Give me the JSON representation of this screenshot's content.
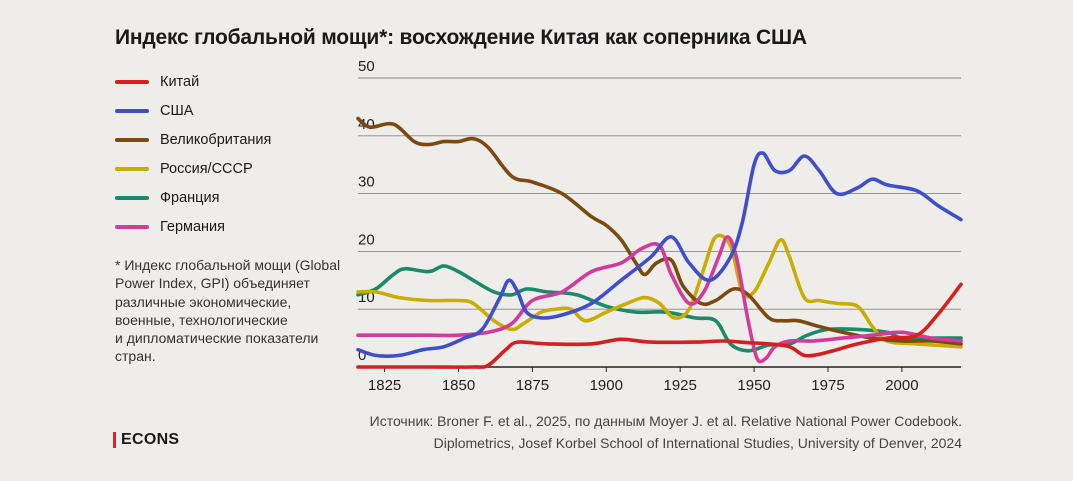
{
  "title": "Индекс глобальной мощи*: восхождение Китая как соперника США",
  "footnote": "* Индекс глобальной мощи (Global Power Index, GPI) объединяет различные экономические, военные, технологические\nи дипломатические показатели стран.",
  "source": {
    "line1": "Источник: Broner F. et al., 2025, по данным Moyer J. et al. Relative National Power Codebook.",
    "line2": "Diplometrics, Josef Korbel School of International Studies, University of Denver, 2024"
  },
  "brand": "ECONS",
  "chart_data": {
    "type": "line",
    "title": "Индекс глобальной мощи*: восхождение Китая как соперника США",
    "xlabel": "",
    "ylabel": "",
    "xlim": [
      1816,
      2020
    ],
    "ylim": [
      0,
      50
    ],
    "x_ticks": [
      "1825",
      "1850",
      "1875",
      "1900",
      "1925",
      "1950",
      "1975",
      "2000"
    ],
    "y_ticks": [
      "0",
      "10",
      "20",
      "30",
      "40",
      "50"
    ],
    "grid": "horizontal",
    "legend_position": "left",
    "series": [
      {
        "name": "Китай",
        "color": "#d42020",
        "points": [
          [
            1816,
            0
          ],
          [
            1825,
            0
          ],
          [
            1840,
            0
          ],
          [
            1855,
            0
          ],
          [
            1860,
            0.3
          ],
          [
            1866,
            3
          ],
          [
            1870,
            4.3
          ],
          [
            1880,
            4
          ],
          [
            1895,
            4
          ],
          [
            1905,
            4.8
          ],
          [
            1915,
            4.3
          ],
          [
            1930,
            4.3
          ],
          [
            1940,
            4.5
          ],
          [
            1948,
            4.2
          ],
          [
            1955,
            4
          ],
          [
            1962,
            3.5
          ],
          [
            1967,
            2
          ],
          [
            1972,
            2.2
          ],
          [
            1978,
            3
          ],
          [
            1985,
            4
          ],
          [
            1995,
            5
          ],
          [
            2005,
            5.5
          ],
          [
            2012,
            9
          ],
          [
            2020,
            14.3
          ]
        ]
      },
      {
        "name": "США",
        "color": "#3f4fc9",
        "points": [
          [
            1816,
            3
          ],
          [
            1822,
            2
          ],
          [
            1830,
            2
          ],
          [
            1838,
            3
          ],
          [
            1845,
            3.5
          ],
          [
            1852,
            5
          ],
          [
            1858,
            6.5
          ],
          [
            1864,
            12
          ],
          [
            1867,
            15
          ],
          [
            1870,
            13
          ],
          [
            1873,
            9.5
          ],
          [
            1878,
            8.5
          ],
          [
            1885,
            9
          ],
          [
            1895,
            11
          ],
          [
            1905,
            15
          ],
          [
            1915,
            19
          ],
          [
            1922,
            22.5
          ],
          [
            1928,
            18
          ],
          [
            1935,
            15
          ],
          [
            1942,
            19
          ],
          [
            1946,
            25
          ],
          [
            1950,
            35
          ],
          [
            1953,
            37
          ],
          [
            1957,
            34
          ],
          [
            1962,
            34
          ],
          [
            1967,
            36.5
          ],
          [
            1972,
            34
          ],
          [
            1978,
            30
          ],
          [
            1985,
            31
          ],
          [
            1990,
            32.5
          ],
          [
            1995,
            31.5
          ],
          [
            2005,
            30.5
          ],
          [
            2012,
            28
          ],
          [
            2020,
            25.5
          ]
        ]
      },
      {
        "name": "Великобритания",
        "color": "#7a4a10",
        "points": [
          [
            1816,
            43
          ],
          [
            1820,
            41.5
          ],
          [
            1828,
            42
          ],
          [
            1835,
            39
          ],
          [
            1840,
            38.5
          ],
          [
            1845,
            39
          ],
          [
            1850,
            39
          ],
          [
            1855,
            39.5
          ],
          [
            1860,
            38
          ],
          [
            1868,
            33
          ],
          [
            1875,
            32
          ],
          [
            1885,
            30
          ],
          [
            1895,
            26
          ],
          [
            1900,
            24.5
          ],
          [
            1905,
            22
          ],
          [
            1910,
            18
          ],
          [
            1913,
            16
          ],
          [
            1917,
            18
          ],
          [
            1922,
            18.5
          ],
          [
            1926,
            14
          ],
          [
            1932,
            11
          ],
          [
            1937,
            11.5
          ],
          [
            1943,
            13.5
          ],
          [
            1948,
            12.5
          ],
          [
            1955,
            8.5
          ],
          [
            1960,
            8
          ],
          [
            1965,
            8
          ],
          [
            1972,
            7
          ],
          [
            1980,
            6
          ],
          [
            1990,
            5
          ],
          [
            2000,
            4.5
          ],
          [
            2010,
            4.5
          ],
          [
            2020,
            4
          ]
        ]
      },
      {
        "name": "Россия/СССР",
        "color": "#c9ad00",
        "points": [
          [
            1816,
            13
          ],
          [
            1822,
            13
          ],
          [
            1830,
            12
          ],
          [
            1840,
            11.5
          ],
          [
            1850,
            11.5
          ],
          [
            1855,
            11
          ],
          [
            1862,
            8
          ],
          [
            1868,
            6.5
          ],
          [
            1872,
            7.5
          ],
          [
            1878,
            9.5
          ],
          [
            1883,
            10
          ],
          [
            1888,
            10
          ],
          [
            1893,
            8
          ],
          [
            1900,
            9.5
          ],
          [
            1907,
            11
          ],
          [
            1913,
            12
          ],
          [
            1918,
            11
          ],
          [
            1923,
            8.5
          ],
          [
            1928,
            10
          ],
          [
            1933,
            17
          ],
          [
            1937,
            22.5
          ],
          [
            1942,
            21
          ],
          [
            1946,
            13
          ],
          [
            1950,
            13
          ],
          [
            1955,
            18
          ],
          [
            1959,
            22
          ],
          [
            1962,
            19
          ],
          [
            1967,
            12
          ],
          [
            1972,
            11.5
          ],
          [
            1978,
            11
          ],
          [
            1985,
            10.5
          ],
          [
            1990,
            7
          ],
          [
            1995,
            4.5
          ],
          [
            2005,
            4
          ],
          [
            2020,
            3.5
          ]
        ]
      },
      {
        "name": "Франция",
        "color": "#1a8a6a",
        "points": [
          [
            1816,
            12.5
          ],
          [
            1822,
            13.5
          ],
          [
            1828,
            16
          ],
          [
            1832,
            17
          ],
          [
            1840,
            16.5
          ],
          [
            1845,
            17.5
          ],
          [
            1850,
            16.5
          ],
          [
            1855,
            15
          ],
          [
            1862,
            13
          ],
          [
            1868,
            12.5
          ],
          [
            1873,
            13.5
          ],
          [
            1880,
            13
          ],
          [
            1890,
            12.5
          ],
          [
            1900,
            10.5
          ],
          [
            1910,
            9.5
          ],
          [
            1920,
            9.5
          ],
          [
            1930,
            8.5
          ],
          [
            1937,
            8
          ],
          [
            1942,
            4
          ],
          [
            1948,
            2.8
          ],
          [
            1955,
            3.8
          ],
          [
            1962,
            4
          ],
          [
            1968,
            5.5
          ],
          [
            1975,
            6.5
          ],
          [
            1985,
            6.5
          ],
          [
            1995,
            6
          ],
          [
            2000,
            5
          ],
          [
            2010,
            5
          ],
          [
            2020,
            5
          ]
        ]
      },
      {
        "name": "Германия",
        "color": "#d43a9c",
        "points": [
          [
            1816,
            5.5
          ],
          [
            1830,
            5.5
          ],
          [
            1840,
            5.5
          ],
          [
            1850,
            5.5
          ],
          [
            1860,
            6
          ],
          [
            1868,
            7.5
          ],
          [
            1875,
            11.5
          ],
          [
            1885,
            13
          ],
          [
            1895,
            16.5
          ],
          [
            1905,
            18
          ],
          [
            1912,
            20.5
          ],
          [
            1918,
            21
          ],
          [
            1922,
            16
          ],
          [
            1928,
            11
          ],
          [
            1933,
            13
          ],
          [
            1938,
            19
          ],
          [
            1941,
            22.5
          ],
          [
            1944,
            19
          ],
          [
            1948,
            8
          ],
          [
            1951,
            1.5
          ],
          [
            1954,
            1.5
          ],
          [
            1957,
            3.5
          ],
          [
            1962,
            4.5
          ],
          [
            1970,
            4.5
          ],
          [
            1980,
            5
          ],
          [
            1990,
            5.5
          ],
          [
            2000,
            6
          ],
          [
            2010,
            5
          ],
          [
            2020,
            4.5
          ]
        ]
      }
    ]
  }
}
